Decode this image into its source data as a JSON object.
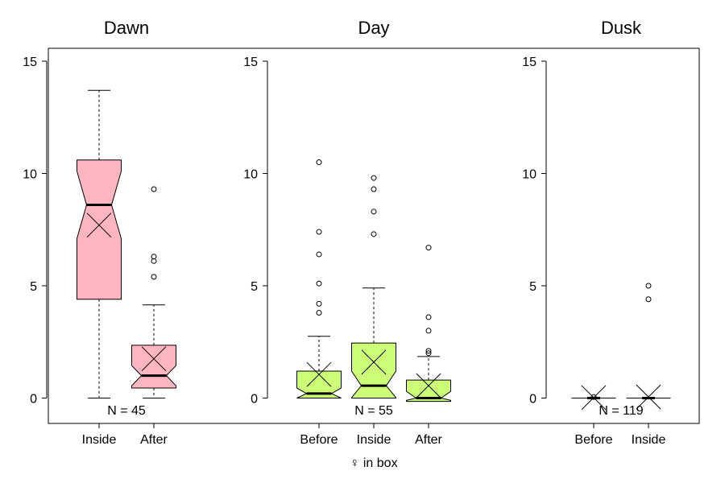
{
  "chart_data": {
    "type": "boxplot",
    "xlabel": "♀ in box",
    "ylim": [
      0,
      15
    ],
    "yticks": [
      "0",
      "5",
      "10",
      "15"
    ],
    "mean_marker": "X",
    "notched": true,
    "panels": [
      {
        "title": "Dawn",
        "n_label": "N = 45",
        "color": "#ffb6c1",
        "categories": [
          "Inside",
          "After"
        ],
        "boxes": [
          {
            "label": "Inside",
            "min": 0,
            "q1": 4.4,
            "median": 8.6,
            "q3": 10.6,
            "max": 13.7,
            "notch_low": 7.1,
            "notch_high": 10.1,
            "mean": 7.7,
            "outliers": []
          },
          {
            "label": "After",
            "min": 0,
            "q1": 0.45,
            "median": 1.0,
            "q3": 2.35,
            "max": 4.15,
            "notch_low": 0.55,
            "notch_high": 1.45,
            "mean": 1.75,
            "outliers": [
              5.4,
              6.1,
              6.3,
              9.3
            ]
          }
        ]
      },
      {
        "title": "Day",
        "n_label": "N = 55",
        "color": "#ccff77",
        "categories": [
          "Before",
          "Inside",
          "After"
        ],
        "boxes": [
          {
            "label": "Before",
            "min": 0,
            "q1": 0,
            "median": 0.2,
            "q3": 1.2,
            "max": 2.75,
            "notch_low": 0,
            "notch_high": 0.45,
            "mean": 1.05,
            "outliers": [
              3.8,
              4.2,
              5.1,
              6.4,
              7.4,
              10.5
            ]
          },
          {
            "label": "Inside",
            "min": 0,
            "q1": 0,
            "median": 0.55,
            "q3": 2.45,
            "max": 4.9,
            "notch_low": 0.02,
            "notch_high": 1.2,
            "mean": 1.6,
            "outliers": [
              7.3,
              8.3,
              9.3,
              9.8
            ]
          },
          {
            "label": "After",
            "min": -0.15,
            "q1": -0.15,
            "median": 0.0,
            "q3": 0.8,
            "max": 1.85,
            "notch_low": -0.1,
            "notch_high": 0.3,
            "mean": 0.55,
            "outliers": [
              2.0,
              2.1,
              3.0,
              3.6,
              6.7
            ]
          }
        ]
      },
      {
        "title": "Dusk",
        "n_label": "N = 119",
        "color": "#ffffff",
        "categories": [
          "Before",
          "Inside"
        ],
        "boxes": [
          {
            "label": "Before",
            "min": 0,
            "q1": 0,
            "median": 0,
            "q3": 0,
            "max": 0,
            "notch_low": 0,
            "notch_high": 0,
            "mean": 0.02,
            "outliers": [
              0.05
            ]
          },
          {
            "label": "Inside",
            "min": 0,
            "q1": 0,
            "median": 0,
            "q3": 0,
            "max": 0,
            "notch_low": 0,
            "notch_high": 0,
            "mean": 0.05,
            "outliers": [
              4.4,
              5.0
            ]
          }
        ]
      }
    ]
  }
}
